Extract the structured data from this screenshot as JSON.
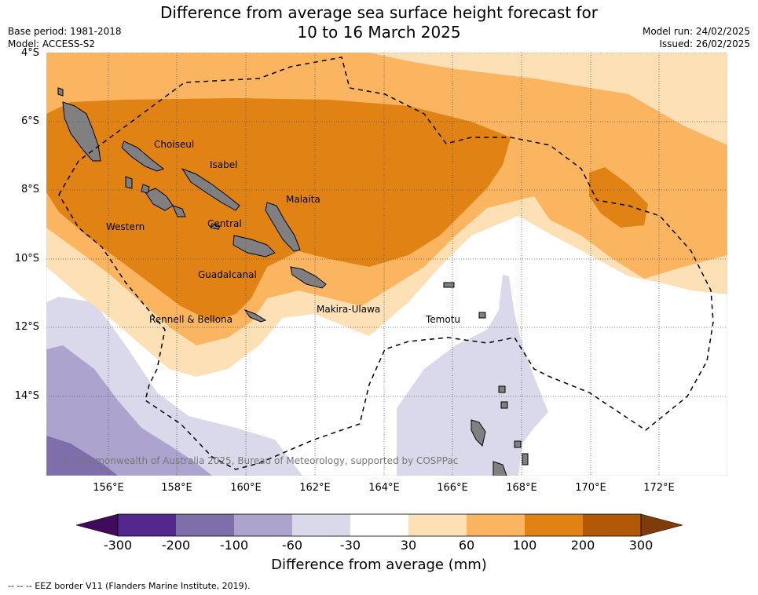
{
  "title_line1": "Difference from average sea surface height forecast for",
  "title_line2": "10 to 16 March 2025",
  "base_period": "Base period: 1981-2018",
  "model": "Model: ACCESS-S2",
  "model_run": "Model run: 24/02/2025",
  "issued": "Issued: 26/02/2025",
  "lat_labels": [
    "4°S",
    "6°S",
    "8°S",
    "10°S",
    "12°S",
    "14°S"
  ],
  "lon_labels": [
    "156°E",
    "158°E",
    "160°E",
    "162°E",
    "164°E",
    "166°E",
    "168°E",
    "170°E",
    "172°E"
  ],
  "places": [
    "Choiseul",
    "Isabel",
    "Malaita",
    "Western",
    "Central",
    "Guadalcanal",
    "Rennell & Bellona",
    "Makira-Ulawa",
    "Temotu"
  ],
  "copyright": "© Commonwealth of Australia 2025, Bureau of Meteorology, supported by COSPPac",
  "colorbar": {
    "title": "Difference from average (mm)",
    "ticks": [
      "-300",
      "-200",
      "-100",
      "-60",
      "-30",
      "30",
      "60",
      "100",
      "200",
      "300"
    ],
    "colors": [
      "#3f0b5a",
      "#54278f",
      "#7e6fab",
      "#aca4cf",
      "#d9d9eb",
      "#ffffff",
      "#fee0b6",
      "#fbb45f",
      "#e08214",
      "#b35806",
      "#7f3b08"
    ]
  },
  "footnote": "--  --  -- EEZ border V11 (Flanders Marine Institute, 2019)."
}
